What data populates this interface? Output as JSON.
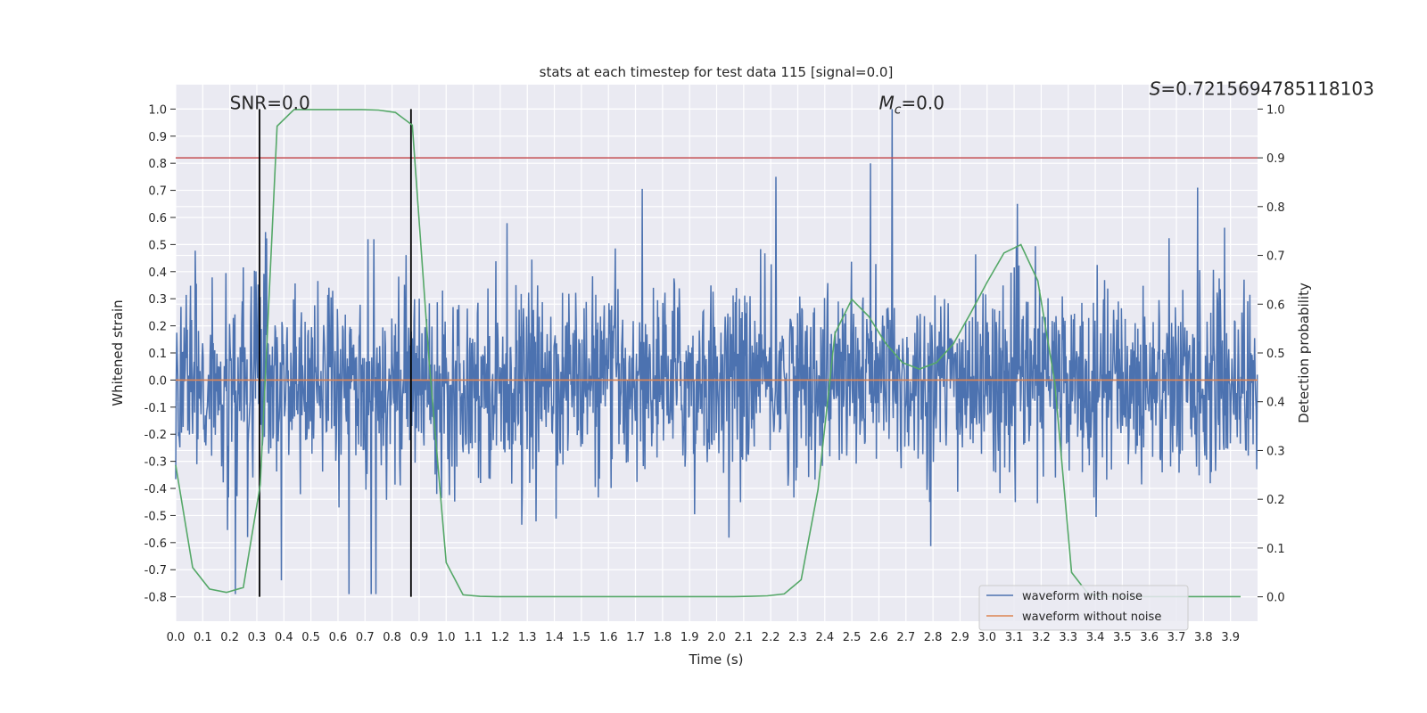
{
  "chart_data": {
    "type": "line",
    "title": "stats at each timestep for test data 115 [signal=0.0]",
    "xlabel": "Time (s)",
    "ylabel": "Whitened strain",
    "ylabel_right": "Detection probability",
    "xlim": [
      0.0,
      4.0
    ],
    "ylim": [
      -0.89,
      1.09
    ],
    "ylim_right": [
      -0.05,
      1.05
    ],
    "grid": true,
    "xticks": [
      "0.0",
      "0.1",
      "0.2",
      "0.3",
      "0.4",
      "0.5",
      "0.6",
      "0.7",
      "0.8",
      "0.9",
      "1.0",
      "1.1",
      "1.2",
      "1.3",
      "1.4",
      "1.5",
      "1.6",
      "1.7",
      "1.8",
      "1.9",
      "2.0",
      "2.1",
      "2.2",
      "2.3",
      "2.4",
      "2.5",
      "2.6",
      "2.7",
      "2.8",
      "2.9",
      "3.0",
      "3.1",
      "3.2",
      "3.3",
      "3.4",
      "3.5",
      "3.6",
      "3.7",
      "3.8",
      "3.9"
    ],
    "yticks": [
      "-0.8",
      "-0.7",
      "-0.6",
      "-0.5",
      "-0.4",
      "-0.3",
      "-0.2",
      "-0.1",
      "0.0",
      "0.1",
      "0.2",
      "0.3",
      "0.4",
      "0.5",
      "0.6",
      "0.7",
      "0.8",
      "0.9",
      "1.0"
    ],
    "yticks_right": [
      "0.0",
      "0.1",
      "0.2",
      "0.3",
      "0.4",
      "0.5",
      "0.6",
      "0.7",
      "0.8",
      "0.9",
      "1.0"
    ],
    "annotations": [
      {
        "text": "SNR=0.0",
        "x": 0.2,
        "y": 1.0
      },
      {
        "text": "M",
        "sub": "c",
        "suffix": "=0.0",
        "x": 2.6,
        "y": 1.0
      },
      {
        "text": "S",
        "suffix": "=0.7215694785118103",
        "x": 3.6,
        "y": 1.0
      }
    ],
    "legend": {
      "placement": "lower-right",
      "entries": [
        "waveform with noise",
        "waveform without noise"
      ]
    },
    "series": [
      {
        "name": "waveform with noise",
        "axis": "left",
        "color": "#4c72b0",
        "kind": "noise",
        "seed": 115,
        "samples": 2048,
        "std": 0.17,
        "clip": [
          -0.79,
          0.8
        ],
        "spikes": [
          {
            "t": 2.65,
            "v": 1.0
          },
          {
            "t": 2.57,
            "v": 0.8
          },
          {
            "t": 2.22,
            "v": 0.75
          },
          {
            "t": 3.78,
            "v": 0.71
          },
          {
            "t": 0.64,
            "v": -0.79
          },
          {
            "t": 0.74,
            "v": -0.79
          },
          {
            "t": 0.22,
            "v": -0.79
          }
        ]
      },
      {
        "name": "waveform without noise",
        "axis": "left",
        "color": "#dd8452",
        "x": [
          0.0,
          4.0
        ],
        "y": [
          0.0,
          0.0
        ]
      },
      {
        "name": "detection probability",
        "axis": "right",
        "color": "#55a868",
        "x_step": 0.0625,
        "y": [
          0.27,
          0.06,
          0.016,
          0.009,
          0.019,
          0.23,
          0.965,
          0.999,
          0.999,
          0.999,
          0.999,
          0.999,
          0.998,
          0.993,
          0.967,
          0.48,
          0.07,
          0.004,
          0.001,
          0.0005,
          0.0005,
          0.0005,
          0.0005,
          0.0005,
          0.0005,
          0.0005,
          0.0005,
          0.0005,
          0.0005,
          0.0005,
          0.0005,
          0.0005,
          0.0005,
          0.0005,
          0.001,
          0.002,
          0.006,
          0.035,
          0.22,
          0.54,
          0.61,
          0.575,
          0.52,
          0.48,
          0.467,
          0.48,
          0.518,
          0.58,
          0.645,
          0.705,
          0.722,
          0.648,
          0.44,
          0.05,
          0.005,
          0.0005,
          0.0005,
          0.0005,
          0.0005,
          0.0005,
          0.0005,
          0.0005,
          0.0005,
          0.0005
        ]
      },
      {
        "name": "threshold",
        "axis": "right",
        "color": "#c44e52",
        "value": 0.9
      },
      {
        "name": "detection window",
        "axis": "left",
        "color": "#000000",
        "x": [
          0.31,
          0.87
        ],
        "y_range": [
          -0.8,
          1.0
        ]
      }
    ]
  }
}
